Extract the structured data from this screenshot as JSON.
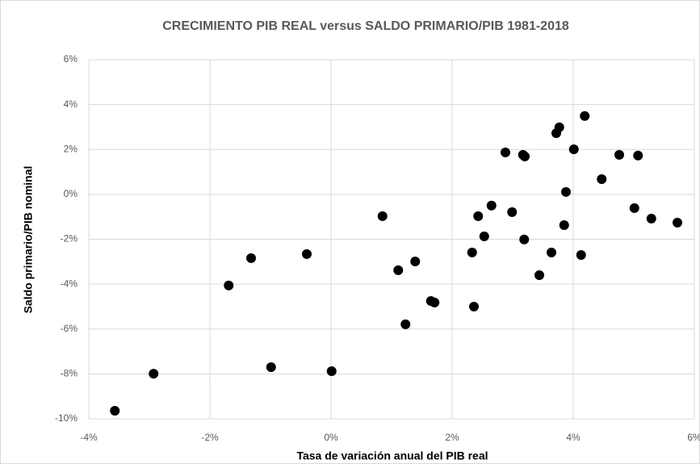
{
  "chart_data": {
    "type": "scatter",
    "title": "CRECIMIENTO PIB REAL versus SALDO PRIMARIO/PIB 1981-2018",
    "x_label": "Tasa de variación anual del PIB real",
    "y_label": "Saldo primario/PIB  nominal",
    "color": "#000000",
    "grid": true,
    "xlim": [
      -4,
      6
    ],
    "ylim": [
      -10,
      6
    ],
    "xticks": [
      {
        "value": -4,
        "label": "-4%"
      },
      {
        "value": -2,
        "label": "-2%"
      },
      {
        "value": 0,
        "label": "0%"
      },
      {
        "value": 2,
        "label": "2%"
      },
      {
        "value": 4,
        "label": "4%"
      },
      {
        "value": 6,
        "label": "6%"
      }
    ],
    "yticks": [
      {
        "value": -10,
        "label": "-10%"
      },
      {
        "value": -8,
        "label": "-8%"
      },
      {
        "value": -6,
        "label": "-6%"
      },
      {
        "value": -4,
        "label": "-4%"
      },
      {
        "value": -2,
        "label": "-2%"
      },
      {
        "value": 0,
        "label": "0%"
      },
      {
        "value": 2,
        "label": "2%"
      },
      {
        "value": 4,
        "label": "4%"
      },
      {
        "value": 6,
        "label": "6%"
      }
    ],
    "x": [
      -3.57,
      -2.93,
      -1.69,
      -1.32,
      -0.99,
      -0.4,
      0.01,
      0.85,
      1.11,
      1.23,
      1.39,
      1.65,
      1.71,
      2.33,
      2.36,
      2.43,
      2.53,
      2.65,
      2.99,
      2.88,
      3.19,
      3.17,
      3.2,
      3.44,
      3.64,
      3.72,
      3.77,
      3.85,
      3.88,
      4.01,
      4.13,
      4.19,
      4.47,
      4.76,
      5.01,
      5.07,
      5.29,
      5.72
    ],
    "y": [
      -9.64,
      -7.99,
      -4.06,
      -2.84,
      -7.7,
      -2.66,
      -7.88,
      -0.97,
      -3.38,
      -5.79,
      -2.99,
      -4.75,
      -4.82,
      -2.59,
      -5.0,
      -0.97,
      -1.87,
      -0.5,
      -0.79,
      1.87,
      -2.01,
      1.76,
      1.69,
      -3.6,
      -2.59,
      2.73,
      2.99,
      -1.37,
      0.11,
      2.01,
      -2.7,
      3.49,
      0.68,
      1.76,
      -0.61,
      1.73,
      -1.08,
      -1.26
    ]
  }
}
